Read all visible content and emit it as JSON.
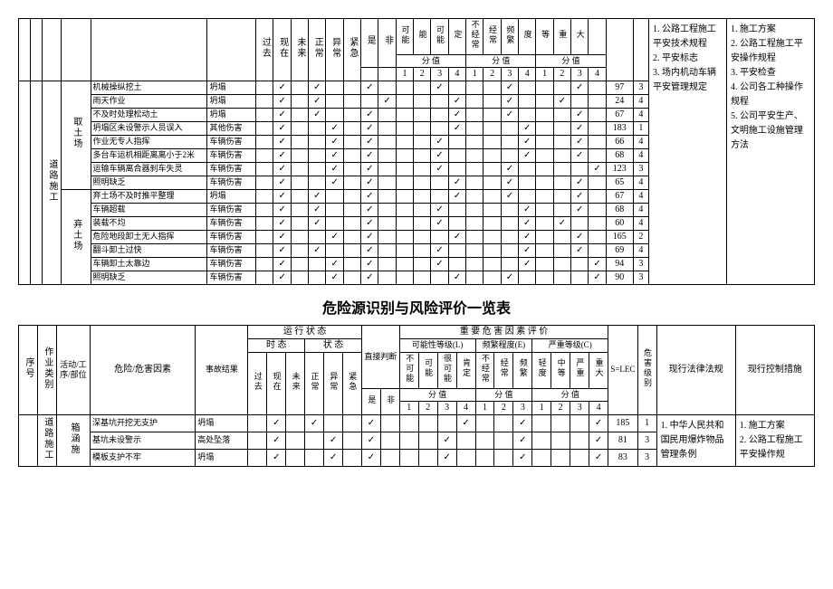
{
  "table1": {
    "side_label": "道路施工",
    "verticalHeaders": [
      "过去",
      "现在",
      "未来",
      "正常",
      "异常",
      "紧急",
      "是",
      "非",
      "可能",
      "能",
      "可能",
      "定",
      "不经常",
      "经常",
      "频繁",
      "度",
      "等",
      "重",
      "大"
    ],
    "subL": [
      "分",
      "值"
    ],
    "subE": [
      "分",
      "值"
    ],
    "subC": [
      "分",
      "值"
    ],
    "nums_L": [
      "1",
      "2",
      "3",
      "4"
    ],
    "nums_E": [
      "1",
      "2",
      "3",
      "4"
    ],
    "nums_C": [
      "1",
      "2",
      "3",
      "4"
    ],
    "groups": [
      {
        "name": "取土场",
        "rows": [
          {
            "hazard": "机械操纵挖土",
            "result": "坍塌",
            "m": [
              "",
              "✓",
              "",
              "✓",
              "",
              "",
              "✓",
              "",
              "",
              "",
              "✓",
              "",
              "",
              "",
              "✓",
              "",
              "",
              "",
              "✓",
              ""
            ],
            "s": "97",
            "lvl": "3"
          },
          {
            "hazard": "雨天作业",
            "result": "坍塌",
            "m": [
              "",
              "✓",
              "",
              "✓",
              "",
              "",
              "",
              "✓",
              "",
              "",
              "",
              "✓",
              "",
              "",
              "✓",
              "",
              "",
              "✓",
              "",
              ""
            ],
            "s": "24",
            "lvl": "4"
          },
          {
            "hazard": "不及时处理松动土",
            "result": "坍塌",
            "m": [
              "",
              "✓",
              "",
              "✓",
              "",
              "",
              "✓",
              "",
              "",
              "",
              "",
              "✓",
              "",
              "",
              "✓",
              "",
              "",
              "",
              "✓",
              ""
            ],
            "s": "67",
            "lvl": "4"
          },
          {
            "hazard": "坍塌区未设警示人员误入",
            "result": "其他伤害",
            "m": [
              "",
              "✓",
              "",
              "",
              "✓",
              "",
              "✓",
              "",
              "",
              "",
              "",
              "✓",
              "",
              "",
              "",
              "✓",
              "",
              "",
              "✓",
              ""
            ],
            "s": "183",
            "lvl": "1"
          },
          {
            "hazard": "作业无专人指挥",
            "result": "车辆伤害",
            "m": [
              "",
              "✓",
              "",
              "",
              "✓",
              "",
              "✓",
              "",
              "",
              "",
              "✓",
              "",
              "",
              "",
              "",
              "✓",
              "",
              "",
              "✓",
              ""
            ],
            "s": "66",
            "lvl": "4"
          },
          {
            "hazard": "多台车运机相距离离小于2米",
            "result": "车辆伤害",
            "m": [
              "",
              "✓",
              "",
              "",
              "✓",
              "",
              "✓",
              "",
              "",
              "",
              "✓",
              "",
              "",
              "",
              "",
              "✓",
              "",
              "",
              "✓",
              ""
            ],
            "s": "68",
            "lvl": "4"
          },
          {
            "hazard": "运输车辆离合器刹车失灵",
            "result": "车辆伤害",
            "m": [
              "",
              "✓",
              "",
              "",
              "✓",
              "",
              "✓",
              "",
              "",
              "",
              "✓",
              "",
              "",
              "",
              "✓",
              "",
              "",
              "",
              "",
              "✓"
            ],
            "s": "123",
            "lvl": "3"
          },
          {
            "hazard": "照明缺乏",
            "result": "车辆伤害",
            "m": [
              "",
              "✓",
              "",
              "",
              "✓",
              "",
              "✓",
              "",
              "",
              "",
              "",
              "✓",
              "",
              "",
              "✓",
              "",
              "",
              "",
              "✓",
              ""
            ],
            "s": "65",
            "lvl": "4"
          }
        ]
      },
      {
        "name": "弃土场",
        "rows": [
          {
            "hazard": "弃土场不及时推平整理",
            "result": "坍塌",
            "m": [
              "",
              "✓",
              "",
              "✓",
              "",
              "",
              "✓",
              "",
              "",
              "",
              "",
              "✓",
              "",
              "",
              "✓",
              "",
              "",
              "",
              "✓",
              ""
            ],
            "s": "67",
            "lvl": "4"
          },
          {
            "hazard": "车辆超载",
            "result": "车辆伤害",
            "m": [
              "",
              "✓",
              "",
              "✓",
              "",
              "",
              "✓",
              "",
              "",
              "",
              "✓",
              "",
              "",
              "",
              "",
              "✓",
              "",
              "",
              "✓",
              ""
            ],
            "s": "68",
            "lvl": "4"
          },
          {
            "hazard": "装载不均",
            "result": "车辆伤害",
            "m": [
              "",
              "✓",
              "",
              "✓",
              "",
              "",
              "✓",
              "",
              "",
              "",
              "✓",
              "",
              "",
              "",
              "",
              "✓",
              "",
              "✓",
              "",
              ""
            ],
            "s": "60",
            "lvl": "4"
          },
          {
            "hazard": "危险地段卸土无人指挥",
            "result": "车辆伤害",
            "m": [
              "",
              "✓",
              "",
              "",
              "✓",
              "",
              "✓",
              "",
              "",
              "",
              "",
              "✓",
              "",
              "",
              "",
              "✓",
              "",
              "",
              "✓",
              ""
            ],
            "s": "165",
            "lvl": "2"
          },
          {
            "hazard": "翻斗卸土过快",
            "result": "车辆伤害",
            "m": [
              "",
              "✓",
              "",
              "✓",
              "",
              "",
              "✓",
              "",
              "",
              "",
              "✓",
              "",
              "",
              "",
              "",
              "✓",
              "",
              "",
              "✓",
              ""
            ],
            "s": "69",
            "lvl": "4"
          },
          {
            "hazard": "车辆卸土太靠边",
            "result": "车辆伤害",
            "m": [
              "",
              "✓",
              "",
              "",
              "✓",
              "",
              "✓",
              "",
              "",
              "",
              "✓",
              "",
              "",
              "",
              "",
              "✓",
              "",
              "",
              "",
              "✓"
            ],
            "s": "94",
            "lvl": "3"
          },
          {
            "hazard": "照明缺乏",
            "result": "车辆伤害",
            "m": [
              "",
              "✓",
              "",
              "",
              "✓",
              "",
              "✓",
              "",
              "",
              "",
              "",
              "✓",
              "",
              "",
              "✓",
              "",
              "",
              "",
              "",
              "✓"
            ],
            "s": "90",
            "lvl": "3"
          }
        ]
      }
    ],
    "notesL": "1. 公路工程施工平安技术规程\n2. 平安标志\n3. 场内机动车辆平安管理规定",
    "notesR": "1. 施工方案\n2. 公路工程施工平安操作规程\n3. 平安检查\n4. 公司各工种操作规程\n5. 公司平安生产、文明施工设施管理方法"
  },
  "title2": "危险源识别与风险评价一览表",
  "table2": {
    "headers": {
      "seq": "序号",
      "cat": "作业类别",
      "act": "活动/工序/部位",
      "hazard": "危险/危害因素",
      "result": "事故结果",
      "runstate": "运 行 状 态",
      "tense": "时 态",
      "state": "状 态",
      "direct": "直接判断",
      "eval": "重 要 危 害 因 素 评 价",
      "L": "可能性等级(L)",
      "E": "频繁程度(E)",
      "C": "严重等级(C)",
      "slec": "S=LEC",
      "level": "危害级别",
      "law": "现行法律法规",
      "ctrl": "现行控制措施",
      "tenses": [
        "过去",
        "现在",
        "未来"
      ],
      "states": [
        "正常",
        "异常",
        "紧急"
      ],
      "yn": [
        "是",
        "非"
      ],
      "Litems": [
        "不可能",
        "可能",
        "很可能",
        "肯定"
      ],
      "Eitems": [
        "不经常",
        "经常",
        "频繁"
      ],
      "Citems": [
        "轻度",
        "中等",
        "严重",
        "重大"
      ],
      "fz": "分 值",
      "nums4": [
        "1",
        "2",
        "3",
        "4"
      ],
      "nums3": [
        "1",
        "2",
        "3"
      ]
    },
    "side_cat": "道路施工",
    "side_act": "箱涵施",
    "rows": [
      {
        "hazard": "深基坑开挖无支护",
        "result": "坍塌",
        "m": [
          "",
          "✓",
          "",
          "✓",
          "",
          "",
          "✓",
          "",
          "",
          "",
          "",
          "✓",
          "",
          "",
          "✓",
          "",
          "",
          "",
          "✓"
        ],
        "s": "185",
        "lvl": "1"
      },
      {
        "hazard": "基坑未设警示",
        "result": "高处坠落",
        "m": [
          "",
          "✓",
          "",
          "",
          "✓",
          "",
          "✓",
          "",
          "",
          "",
          "✓",
          "",
          "",
          "",
          "✓",
          "",
          "",
          "",
          "✓"
        ],
        "s": "81",
        "lvl": "3"
      },
      {
        "hazard": "模板支护不牢",
        "result": "坍塌",
        "m": [
          "",
          "✓",
          "",
          "",
          "✓",
          "",
          "✓",
          "",
          "",
          "",
          "✓",
          "",
          "",
          "",
          "✓",
          "",
          "",
          "",
          "✓"
        ],
        "s": "83",
        "lvl": "3"
      }
    ],
    "law": "1. 中华人民共和国民用爆炸物品管理条例",
    "ctrl": "1. 施工方案\n2. 公路工程施工平安操作规"
  }
}
